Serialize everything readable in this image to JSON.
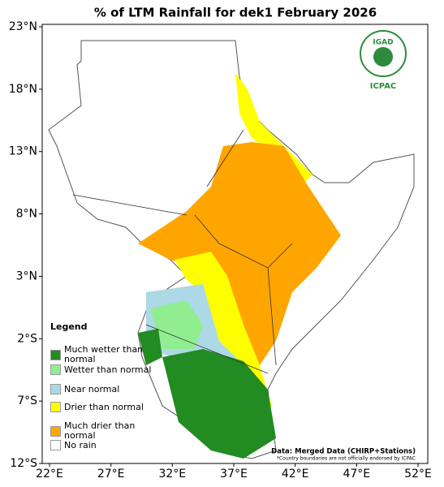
{
  "title": "% of LTM Rainfall for dek1 February 2026",
  "lat_ticks": [
    "23°N",
    "18°N",
    "13°N",
    "8°N",
    "3°N",
    "2°S",
    "7°S",
    "12°S"
  ],
  "lon_ticks": [
    "22°E",
    "27°E",
    "32°E",
    "37°E",
    "42°E",
    "47°E",
    "52°E"
  ],
  "logo": {
    "name": "IGAD",
    "org": "ICPAC"
  },
  "legend": {
    "title": "Legend",
    "items": [
      {
        "label": "Much wetter than normal",
        "color": "#228b22"
      },
      {
        "label": "Wetter than normal",
        "color": "#90ee90"
      },
      {
        "label": "Near normal",
        "color": "#add8e6"
      },
      {
        "label": "Drier than normal",
        "color": "#ffff00"
      },
      {
        "label": "Much drier than normal",
        "color": "#ffa500"
      },
      {
        "label": "No rain",
        "color": "#ffffff"
      }
    ]
  },
  "source": "Data: Merged Data (CHIRP+Stations)",
  "disclaimer": "*Country boundaries are not officially endorsed by ICPAC"
}
